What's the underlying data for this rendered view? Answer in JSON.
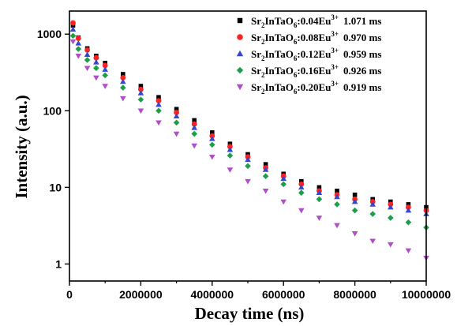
{
  "chart_data": {
    "type": "scatter",
    "title": "",
    "xlabel": "Decay time (ns)",
    "ylabel": "Intensity (a.u.)",
    "xlim": [
      0,
      10000000
    ],
    "ylim": [
      0.6,
      2000
    ],
    "yscale": "log",
    "x_ticks": [
      0,
      2000000,
      4000000,
      6000000,
      8000000,
      10000000
    ],
    "x_tick_labels": [
      "0",
      "2000000",
      "4000000",
      "6000000",
      "8000000",
      "10000000"
    ],
    "y_ticks": [
      1,
      10,
      100,
      1000
    ],
    "y_tick_labels": [
      "1",
      "10",
      "100",
      "1000"
    ],
    "legend_position": "top-right",
    "grid": false,
    "series": [
      {
        "name_base": "Sr",
        "name_sub1": "2",
        "name_mid": "InTaO",
        "name_sub2": "6",
        "name_dopant": ":0.04Eu",
        "name_sup": "3+",
        "lifetime": "1.071 ms",
        "color": "#000000",
        "marker": "square",
        "x": [
          100000,
          250000,
          500000,
          750000,
          1000000,
          1500000,
          2000000,
          2500000,
          3000000,
          3500000,
          4000000,
          4500000,
          5000000,
          5500000,
          6000000,
          6500000,
          7000000,
          7500000,
          8000000,
          8500000,
          9000000,
          9500000,
          10000000
        ],
        "y": [
          1300,
          900,
          650,
          520,
          420,
          300,
          210,
          150,
          105,
          75,
          52,
          37,
          27,
          20,
          15,
          12,
          10,
          9,
          8,
          7,
          6.5,
          6,
          5.5
        ]
      },
      {
        "name_base": "Sr",
        "name_sub1": "2",
        "name_mid": "InTaO",
        "name_sub2": "6",
        "name_dopant": ":0.08Eu",
        "name_sup": "3+",
        "lifetime": "0.970 ms",
        "color": "#ff2020",
        "marker": "circle",
        "x": [
          100000,
          250000,
          500000,
          750000,
          1000000,
          1500000,
          2000000,
          2500000,
          3000000,
          3500000,
          4000000,
          4500000,
          5000000,
          5500000,
          6000000,
          6500000,
          7000000,
          7500000,
          8000000,
          8500000,
          9000000,
          9500000,
          10000000
        ],
        "y": [
          1400,
          880,
          620,
          490,
          390,
          270,
          190,
          135,
          95,
          67,
          47,
          34,
          25,
          18,
          14,
          11,
          9,
          8,
          7,
          6.5,
          6,
          5.5,
          5
        ]
      },
      {
        "name_base": "Sr",
        "name_sub1": "2",
        "name_mid": "InTaO",
        "name_sub2": "6",
        "name_dopant": ":0.12Eu",
        "name_sup": "3+",
        "lifetime": "0.959 ms",
        "color": "#3347d1",
        "marker": "triangle-up",
        "x": [
          100000,
          250000,
          500000,
          750000,
          1000000,
          1500000,
          2000000,
          2500000,
          3000000,
          3500000,
          4000000,
          4500000,
          5000000,
          5500000,
          6000000,
          6500000,
          7000000,
          7500000,
          8000000,
          8500000,
          9000000,
          9500000,
          10000000
        ],
        "y": [
          1150,
          760,
          540,
          430,
          345,
          240,
          170,
          120,
          85,
          60,
          43,
          31,
          23,
          17,
          13,
          10,
          8.5,
          7.5,
          6.5,
          6,
          5.5,
          5,
          4.5
        ]
      },
      {
        "name_base": "Sr",
        "name_sub1": "2",
        "name_mid": "InTaO",
        "name_sub2": "6",
        "name_dopant": ":0.16Eu",
        "name_sup": "3+",
        "lifetime": "0.926 ms",
        "color": "#1f9e4a",
        "marker": "diamond",
        "x": [
          100000,
          250000,
          500000,
          750000,
          1000000,
          1500000,
          2000000,
          2500000,
          3000000,
          3500000,
          4000000,
          4500000,
          5000000,
          5500000,
          6000000,
          6500000,
          7000000,
          7500000,
          8000000,
          8500000,
          9000000,
          9500000,
          10000000
        ],
        "y": [
          950,
          640,
          460,
          360,
          290,
          200,
          140,
          100,
          70,
          50,
          36,
          26,
          19,
          14,
          11,
          8.5,
          7,
          6,
          5,
          4.5,
          4,
          3.5,
          3
        ]
      },
      {
        "name_base": "Sr",
        "name_sub1": "2",
        "name_mid": "InTaO",
        "name_sub2": "6",
        "name_dopant": ":0.20Eu",
        "name_sup": "3+",
        "lifetime": "0.919 ms",
        "color": "#b04dc8",
        "marker": "triangle-down",
        "x": [
          100000,
          250000,
          500000,
          750000,
          1000000,
          1500000,
          2000000,
          2500000,
          3000000,
          3500000,
          4000000,
          4500000,
          5000000,
          5500000,
          6000000,
          6500000,
          7000000,
          7500000,
          8000000,
          8500000,
          9000000,
          9500000,
          10000000
        ],
        "y": [
          800,
          520,
          360,
          270,
          210,
          145,
          100,
          70,
          50,
          35,
          25,
          17,
          12,
          9,
          6.5,
          5,
          4,
          3.2,
          2.5,
          2,
          1.8,
          1.5,
          1.2
        ]
      }
    ]
  }
}
